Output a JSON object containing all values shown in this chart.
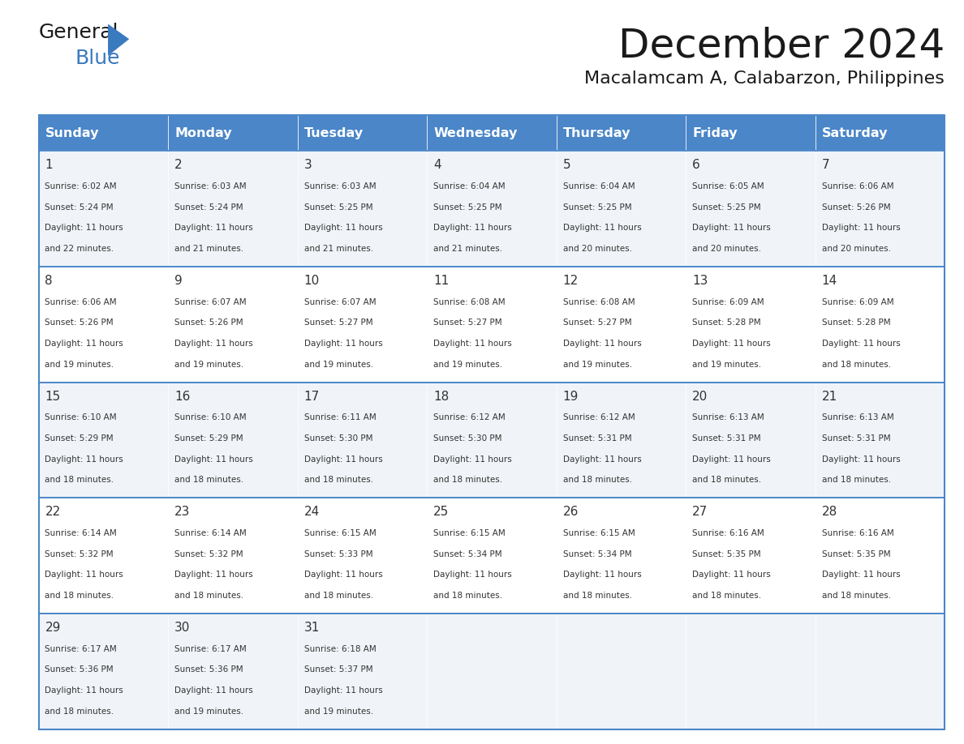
{
  "title": "December 2024",
  "subtitle": "Macalamcam A, Calabarzon, Philippines",
  "days_of_week": [
    "Sunday",
    "Monday",
    "Tuesday",
    "Wednesday",
    "Thursday",
    "Friday",
    "Saturday"
  ],
  "header_bg": "#4a86c8",
  "header_text": "#ffffff",
  "cell_bg_light": "#f0f4f8",
  "cell_bg_white": "#ffffff",
  "border_color": "#4a86c8",
  "day_num_color": "#333333",
  "cell_text_color": "#333333",
  "title_color": "#1a1a1a",
  "subtitle_color": "#1a1a1a",
  "logo_general_color": "#1a1a1a",
  "logo_blue_color": "#3a7abf",
  "weeks": [
    [
      {
        "day": 1,
        "sunrise": "6:02 AM",
        "sunset": "5:24 PM",
        "daylight": "11 hours and 22 minutes."
      },
      {
        "day": 2,
        "sunrise": "6:03 AM",
        "sunset": "5:24 PM",
        "daylight": "11 hours and 21 minutes."
      },
      {
        "day": 3,
        "sunrise": "6:03 AM",
        "sunset": "5:25 PM",
        "daylight": "11 hours and 21 minutes."
      },
      {
        "day": 4,
        "sunrise": "6:04 AM",
        "sunset": "5:25 PM",
        "daylight": "11 hours and 21 minutes."
      },
      {
        "day": 5,
        "sunrise": "6:04 AM",
        "sunset": "5:25 PM",
        "daylight": "11 hours and 20 minutes."
      },
      {
        "day": 6,
        "sunrise": "6:05 AM",
        "sunset": "5:25 PM",
        "daylight": "11 hours and 20 minutes."
      },
      {
        "day": 7,
        "sunrise": "6:06 AM",
        "sunset": "5:26 PM",
        "daylight": "11 hours and 20 minutes."
      }
    ],
    [
      {
        "day": 8,
        "sunrise": "6:06 AM",
        "sunset": "5:26 PM",
        "daylight": "11 hours and 19 minutes."
      },
      {
        "day": 9,
        "sunrise": "6:07 AM",
        "sunset": "5:26 PM",
        "daylight": "11 hours and 19 minutes."
      },
      {
        "day": 10,
        "sunrise": "6:07 AM",
        "sunset": "5:27 PM",
        "daylight": "11 hours and 19 minutes."
      },
      {
        "day": 11,
        "sunrise": "6:08 AM",
        "sunset": "5:27 PM",
        "daylight": "11 hours and 19 minutes."
      },
      {
        "day": 12,
        "sunrise": "6:08 AM",
        "sunset": "5:27 PM",
        "daylight": "11 hours and 19 minutes."
      },
      {
        "day": 13,
        "sunrise": "6:09 AM",
        "sunset": "5:28 PM",
        "daylight": "11 hours and 19 minutes."
      },
      {
        "day": 14,
        "sunrise": "6:09 AM",
        "sunset": "5:28 PM",
        "daylight": "11 hours and 18 minutes."
      }
    ],
    [
      {
        "day": 15,
        "sunrise": "6:10 AM",
        "sunset": "5:29 PM",
        "daylight": "11 hours and 18 minutes."
      },
      {
        "day": 16,
        "sunrise": "6:10 AM",
        "sunset": "5:29 PM",
        "daylight": "11 hours and 18 minutes."
      },
      {
        "day": 17,
        "sunrise": "6:11 AM",
        "sunset": "5:30 PM",
        "daylight": "11 hours and 18 minutes."
      },
      {
        "day": 18,
        "sunrise": "6:12 AM",
        "sunset": "5:30 PM",
        "daylight": "11 hours and 18 minutes."
      },
      {
        "day": 19,
        "sunrise": "6:12 AM",
        "sunset": "5:31 PM",
        "daylight": "11 hours and 18 minutes."
      },
      {
        "day": 20,
        "sunrise": "6:13 AM",
        "sunset": "5:31 PM",
        "daylight": "11 hours and 18 minutes."
      },
      {
        "day": 21,
        "sunrise": "6:13 AM",
        "sunset": "5:31 PM",
        "daylight": "11 hours and 18 minutes."
      }
    ],
    [
      {
        "day": 22,
        "sunrise": "6:14 AM",
        "sunset": "5:32 PM",
        "daylight": "11 hours and 18 minutes."
      },
      {
        "day": 23,
        "sunrise": "6:14 AM",
        "sunset": "5:32 PM",
        "daylight": "11 hours and 18 minutes."
      },
      {
        "day": 24,
        "sunrise": "6:15 AM",
        "sunset": "5:33 PM",
        "daylight": "11 hours and 18 minutes."
      },
      {
        "day": 25,
        "sunrise": "6:15 AM",
        "sunset": "5:34 PM",
        "daylight": "11 hours and 18 minutes."
      },
      {
        "day": 26,
        "sunrise": "6:15 AM",
        "sunset": "5:34 PM",
        "daylight": "11 hours and 18 minutes."
      },
      {
        "day": 27,
        "sunrise": "6:16 AM",
        "sunset": "5:35 PM",
        "daylight": "11 hours and 18 minutes."
      },
      {
        "day": 28,
        "sunrise": "6:16 AM",
        "sunset": "5:35 PM",
        "daylight": "11 hours and 18 minutes."
      }
    ],
    [
      {
        "day": 29,
        "sunrise": "6:17 AM",
        "sunset": "5:36 PM",
        "daylight": "11 hours and 18 minutes."
      },
      {
        "day": 30,
        "sunrise": "6:17 AM",
        "sunset": "5:36 PM",
        "daylight": "11 hours and 19 minutes."
      },
      {
        "day": 31,
        "sunrise": "6:18 AM",
        "sunset": "5:37 PM",
        "daylight": "11 hours and 19 minutes."
      },
      null,
      null,
      null,
      null
    ]
  ]
}
